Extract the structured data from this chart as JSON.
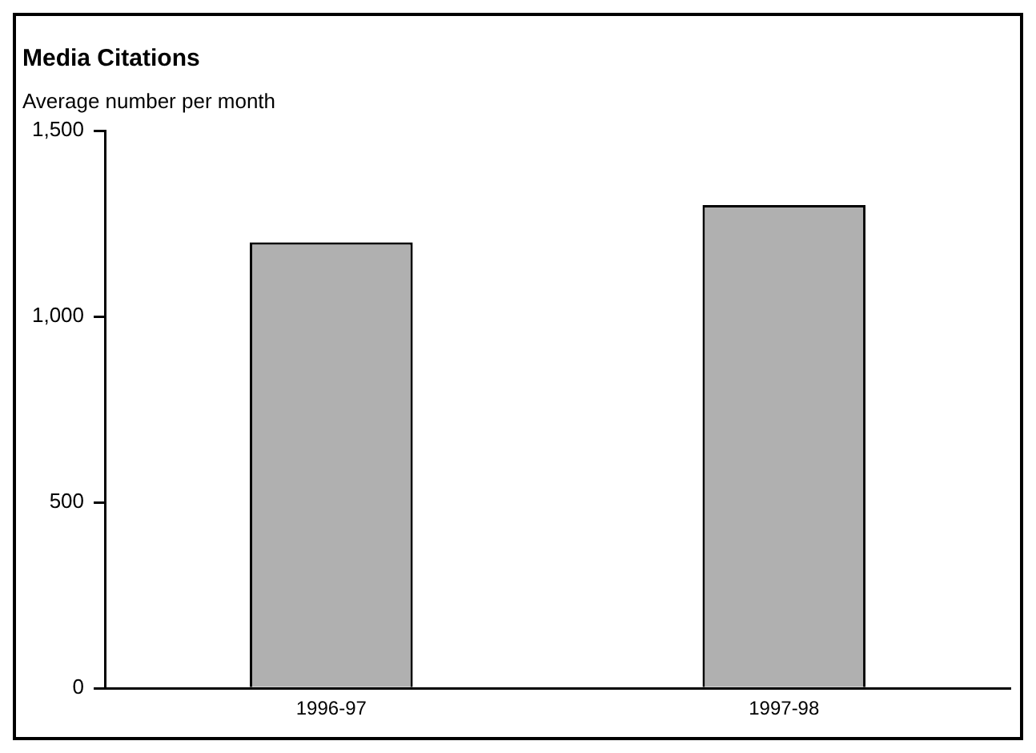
{
  "chart_data": {
    "type": "bar",
    "title": "Media Citations",
    "ylabel": "Average number per month",
    "categories": [
      "1996-97",
      "1997-98"
    ],
    "values": [
      1200,
      1300
    ],
    "color": "#b0b0b0",
    "ylim": [
      0,
      1500
    ],
    "yticks": [
      0,
      500,
      {
        "value": 1000,
        "label": "1,000"
      },
      {
        "value": 1500,
        "label": "1,500"
      }
    ],
    "grid": false,
    "legend": false
  }
}
